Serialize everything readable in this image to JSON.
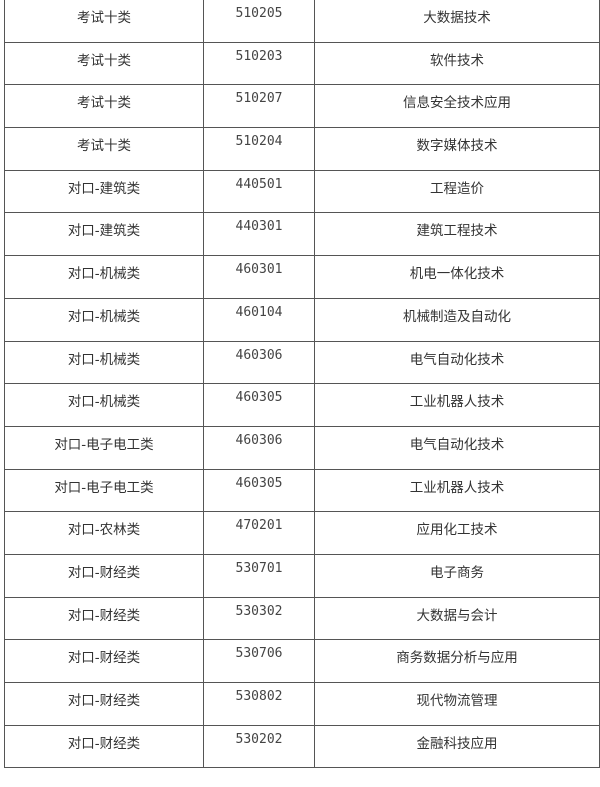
{
  "table": {
    "rows": [
      {
        "category": "考试十类",
        "code": "510205",
        "major": "大数据技术"
      },
      {
        "category": "考试十类",
        "code": "510203",
        "major": "软件技术"
      },
      {
        "category": "考试十类",
        "code": "510207",
        "major": "信息安全技术应用"
      },
      {
        "category": "考试十类",
        "code": "510204",
        "major": "数字媒体技术"
      },
      {
        "category": "对口-建筑类",
        "code": "440501",
        "major": "工程造价"
      },
      {
        "category": "对口-建筑类",
        "code": "440301",
        "major": "建筑工程技术"
      },
      {
        "category": "对口-机械类",
        "code": "460301",
        "major": "机电一体化技术"
      },
      {
        "category": "对口-机械类",
        "code": "460104",
        "major": "机械制造及自动化"
      },
      {
        "category": "对口-机械类",
        "code": "460306",
        "major": "电气自动化技术"
      },
      {
        "category": "对口-机械类",
        "code": "460305",
        "major": "工业机器人技术"
      },
      {
        "category": "对口-电子电工类",
        "code": "460306",
        "major": "电气自动化技术"
      },
      {
        "category": "对口-电子电工类",
        "code": "460305",
        "major": "工业机器人技术"
      },
      {
        "category": "对口-农林类",
        "code": "470201",
        "major": "应用化工技术"
      },
      {
        "category": "对口-财经类",
        "code": "530701",
        "major": "电子商务"
      },
      {
        "category": "对口-财经类",
        "code": "530302",
        "major": "大数据与会计"
      },
      {
        "category": "对口-财经类",
        "code": "530706",
        "major": "商务数据分析与应用"
      },
      {
        "category": "对口-财经类",
        "code": "530802",
        "major": "现代物流管理"
      },
      {
        "category": "对口-财经类",
        "code": "530202",
        "major": "金融科技应用"
      }
    ]
  }
}
